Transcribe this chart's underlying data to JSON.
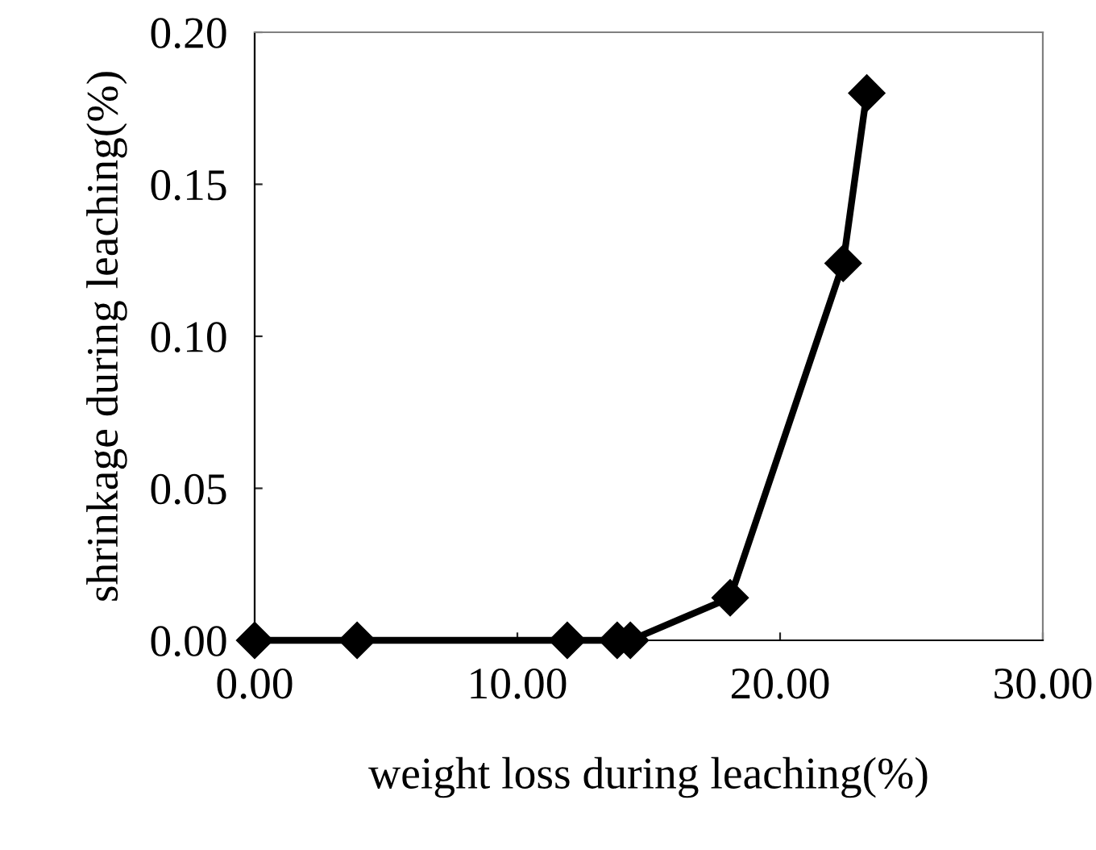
{
  "chart_data": {
    "type": "line",
    "xlabel": "weight loss during leaching(%)",
    "ylabel": "shrinkage during leaching(%)",
    "x": [
      0.0,
      3.9,
      11.9,
      13.8,
      14.3,
      18.1,
      22.4,
      23.3
    ],
    "series": [
      {
        "color": "#000000",
        "values": [
          0.0,
          0.0,
          0.0,
          0.0,
          0.0,
          0.014,
          0.124,
          0.18
        ]
      }
    ],
    "xlim": [
      0,
      30
    ],
    "xticks": [
      {
        "value": 0,
        "label": "0.00"
      },
      {
        "value": 10,
        "label": "10.00"
      },
      {
        "value": 20,
        "label": "20.00"
      },
      {
        "value": 30,
        "label": "30.00"
      }
    ],
    "ylim": [
      0,
      0.2
    ],
    "yticks": [
      {
        "value": 0,
        "label": "0.00"
      },
      {
        "value": 0.05,
        "label": "0.05"
      },
      {
        "value": 0.1,
        "label": "0.10"
      },
      {
        "value": 0.15,
        "label": "0.15"
      },
      {
        "value": 0.2,
        "label": "0.20"
      }
    ],
    "marker": "diamond",
    "line_style": "solid",
    "grid": false,
    "legend": false
  }
}
